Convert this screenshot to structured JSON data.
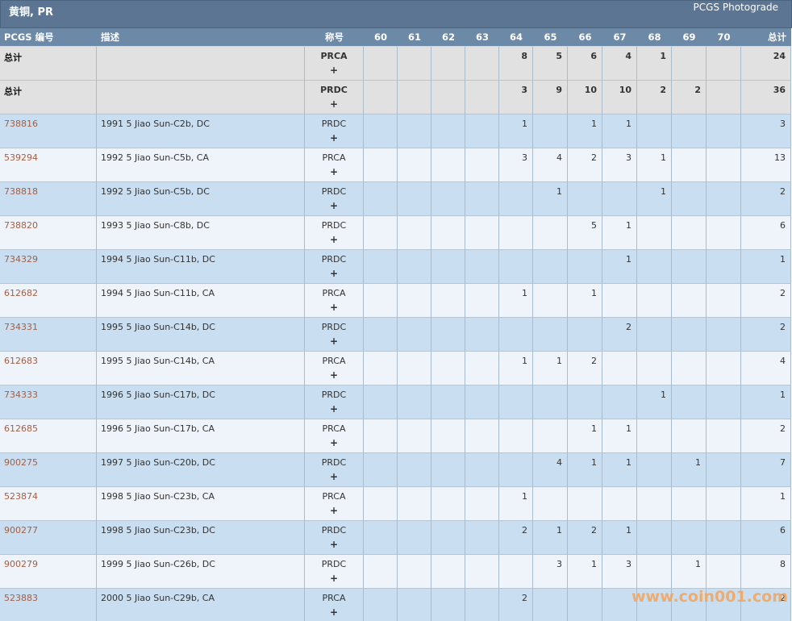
{
  "header": {
    "title": "黄铜, PR",
    "link": "PCGS Photograde"
  },
  "table": {
    "columns": [
      "PCGS 编号",
      "描述",
      "称号",
      "60",
      "61",
      "62",
      "63",
      "64",
      "65",
      "66",
      "67",
      "68",
      "69",
      "70",
      "总计"
    ],
    "rows": [
      {
        "id": "总计",
        "description": null,
        "designation": "PRCA",
        "suffix": "+",
        "counts": [
          null,
          null,
          null,
          null,
          8,
          5,
          6,
          4,
          1,
          null,
          null
        ],
        "total": 24
      },
      {
        "id": "总计",
        "description": null,
        "designation": "PRDC",
        "suffix": "+",
        "counts": [
          null,
          null,
          null,
          null,
          3,
          9,
          10,
          10,
          2,
          2,
          null
        ],
        "total": 36
      },
      {
        "id": "738816",
        "description": "1991 5 Jiao Sun-C2b, DC",
        "designation": "PRDC",
        "suffix": "+",
        "counts": [
          null,
          null,
          null,
          null,
          1,
          null,
          1,
          1,
          null,
          null,
          null
        ],
        "total": 3
      },
      {
        "id": "539294",
        "description": "1992 5 Jiao Sun-C5b, CA",
        "designation": "PRCA",
        "suffix": "+",
        "counts": [
          null,
          null,
          null,
          null,
          3,
          4,
          2,
          3,
          1,
          null,
          null
        ],
        "total": 13
      },
      {
        "id": "738818",
        "description": "1992 5 Jiao Sun-C5b, DC",
        "designation": "PRDC",
        "suffix": "+",
        "counts": [
          null,
          null,
          null,
          null,
          null,
          1,
          null,
          null,
          1,
          null,
          null
        ],
        "total": 2
      },
      {
        "id": "738820",
        "description": "1993 5 Jiao Sun-C8b, DC",
        "designation": "PRDC",
        "suffix": "+",
        "counts": [
          null,
          null,
          null,
          null,
          null,
          null,
          5,
          1,
          null,
          null,
          null
        ],
        "total": 6
      },
      {
        "id": "734329",
        "description": "1994 5 Jiao Sun-C11b, DC",
        "designation": "PRDC",
        "suffix": "+",
        "counts": [
          null,
          null,
          null,
          null,
          null,
          null,
          null,
          1,
          null,
          null,
          null
        ],
        "total": 1
      },
      {
        "id": "612682",
        "description": "1994 5 Jiao Sun-C11b, CA",
        "designation": "PRCA",
        "suffix": "+",
        "counts": [
          null,
          null,
          null,
          null,
          1,
          null,
          1,
          null,
          null,
          null,
          null
        ],
        "total": 2
      },
      {
        "id": "734331",
        "description": "1995 5 Jiao Sun-C14b, DC",
        "designation": "PRDC",
        "suffix": "+",
        "counts": [
          null,
          null,
          null,
          null,
          null,
          null,
          null,
          2,
          null,
          null,
          null
        ],
        "total": 2
      },
      {
        "id": "612683",
        "description": "1995 5 Jiao Sun-C14b, CA",
        "designation": "PRCA",
        "suffix": "+",
        "counts": [
          null,
          null,
          null,
          null,
          1,
          1,
          2,
          null,
          null,
          null,
          null
        ],
        "total": 4
      },
      {
        "id": "734333",
        "description": "1996 5 Jiao Sun-C17b, DC",
        "designation": "PRDC",
        "suffix": "+",
        "counts": [
          null,
          null,
          null,
          null,
          null,
          null,
          null,
          null,
          1,
          null,
          null
        ],
        "total": 1
      },
      {
        "id": "612685",
        "description": "1996 5 Jiao Sun-C17b, CA",
        "designation": "PRCA",
        "suffix": "+",
        "counts": [
          null,
          null,
          null,
          null,
          null,
          null,
          1,
          1,
          null,
          null,
          null
        ],
        "total": 2
      },
      {
        "id": "900275",
        "description": "1997 5 Jiao Sun-C20b, DC",
        "designation": "PRDC",
        "suffix": "+",
        "counts": [
          null,
          null,
          null,
          null,
          null,
          4,
          1,
          1,
          null,
          1,
          null
        ],
        "total": 7
      },
      {
        "id": "523874",
        "description": "1998 5 Jiao Sun-C23b, CA",
        "designation": "PRCA",
        "suffix": "+",
        "counts": [
          null,
          null,
          null,
          null,
          1,
          null,
          null,
          null,
          null,
          null,
          null
        ],
        "total": 1
      },
      {
        "id": "900277",
        "description": "1998 5 Jiao Sun-C23b, DC",
        "designation": "PRDC",
        "suffix": "+",
        "counts": [
          null,
          null,
          null,
          null,
          2,
          1,
          2,
          1,
          null,
          null,
          null
        ],
        "total": 6
      },
      {
        "id": "900279",
        "description": "1999 5 Jiao Sun-C26b, DC",
        "designation": "PRDC",
        "suffix": "+",
        "counts": [
          null,
          null,
          null,
          null,
          null,
          3,
          1,
          3,
          null,
          1,
          null
        ],
        "total": 8
      },
      {
        "id": "523883",
        "description": "2000 5 Jiao Sun-C29b, CA",
        "designation": "PRCA",
        "suffix": "+",
        "counts": [
          null,
          null,
          null,
          null,
          2,
          null,
          null,
          null,
          null,
          null,
          null
        ],
        "total": 2
      }
    ]
  },
  "watermark": "www.coin001.com"
}
